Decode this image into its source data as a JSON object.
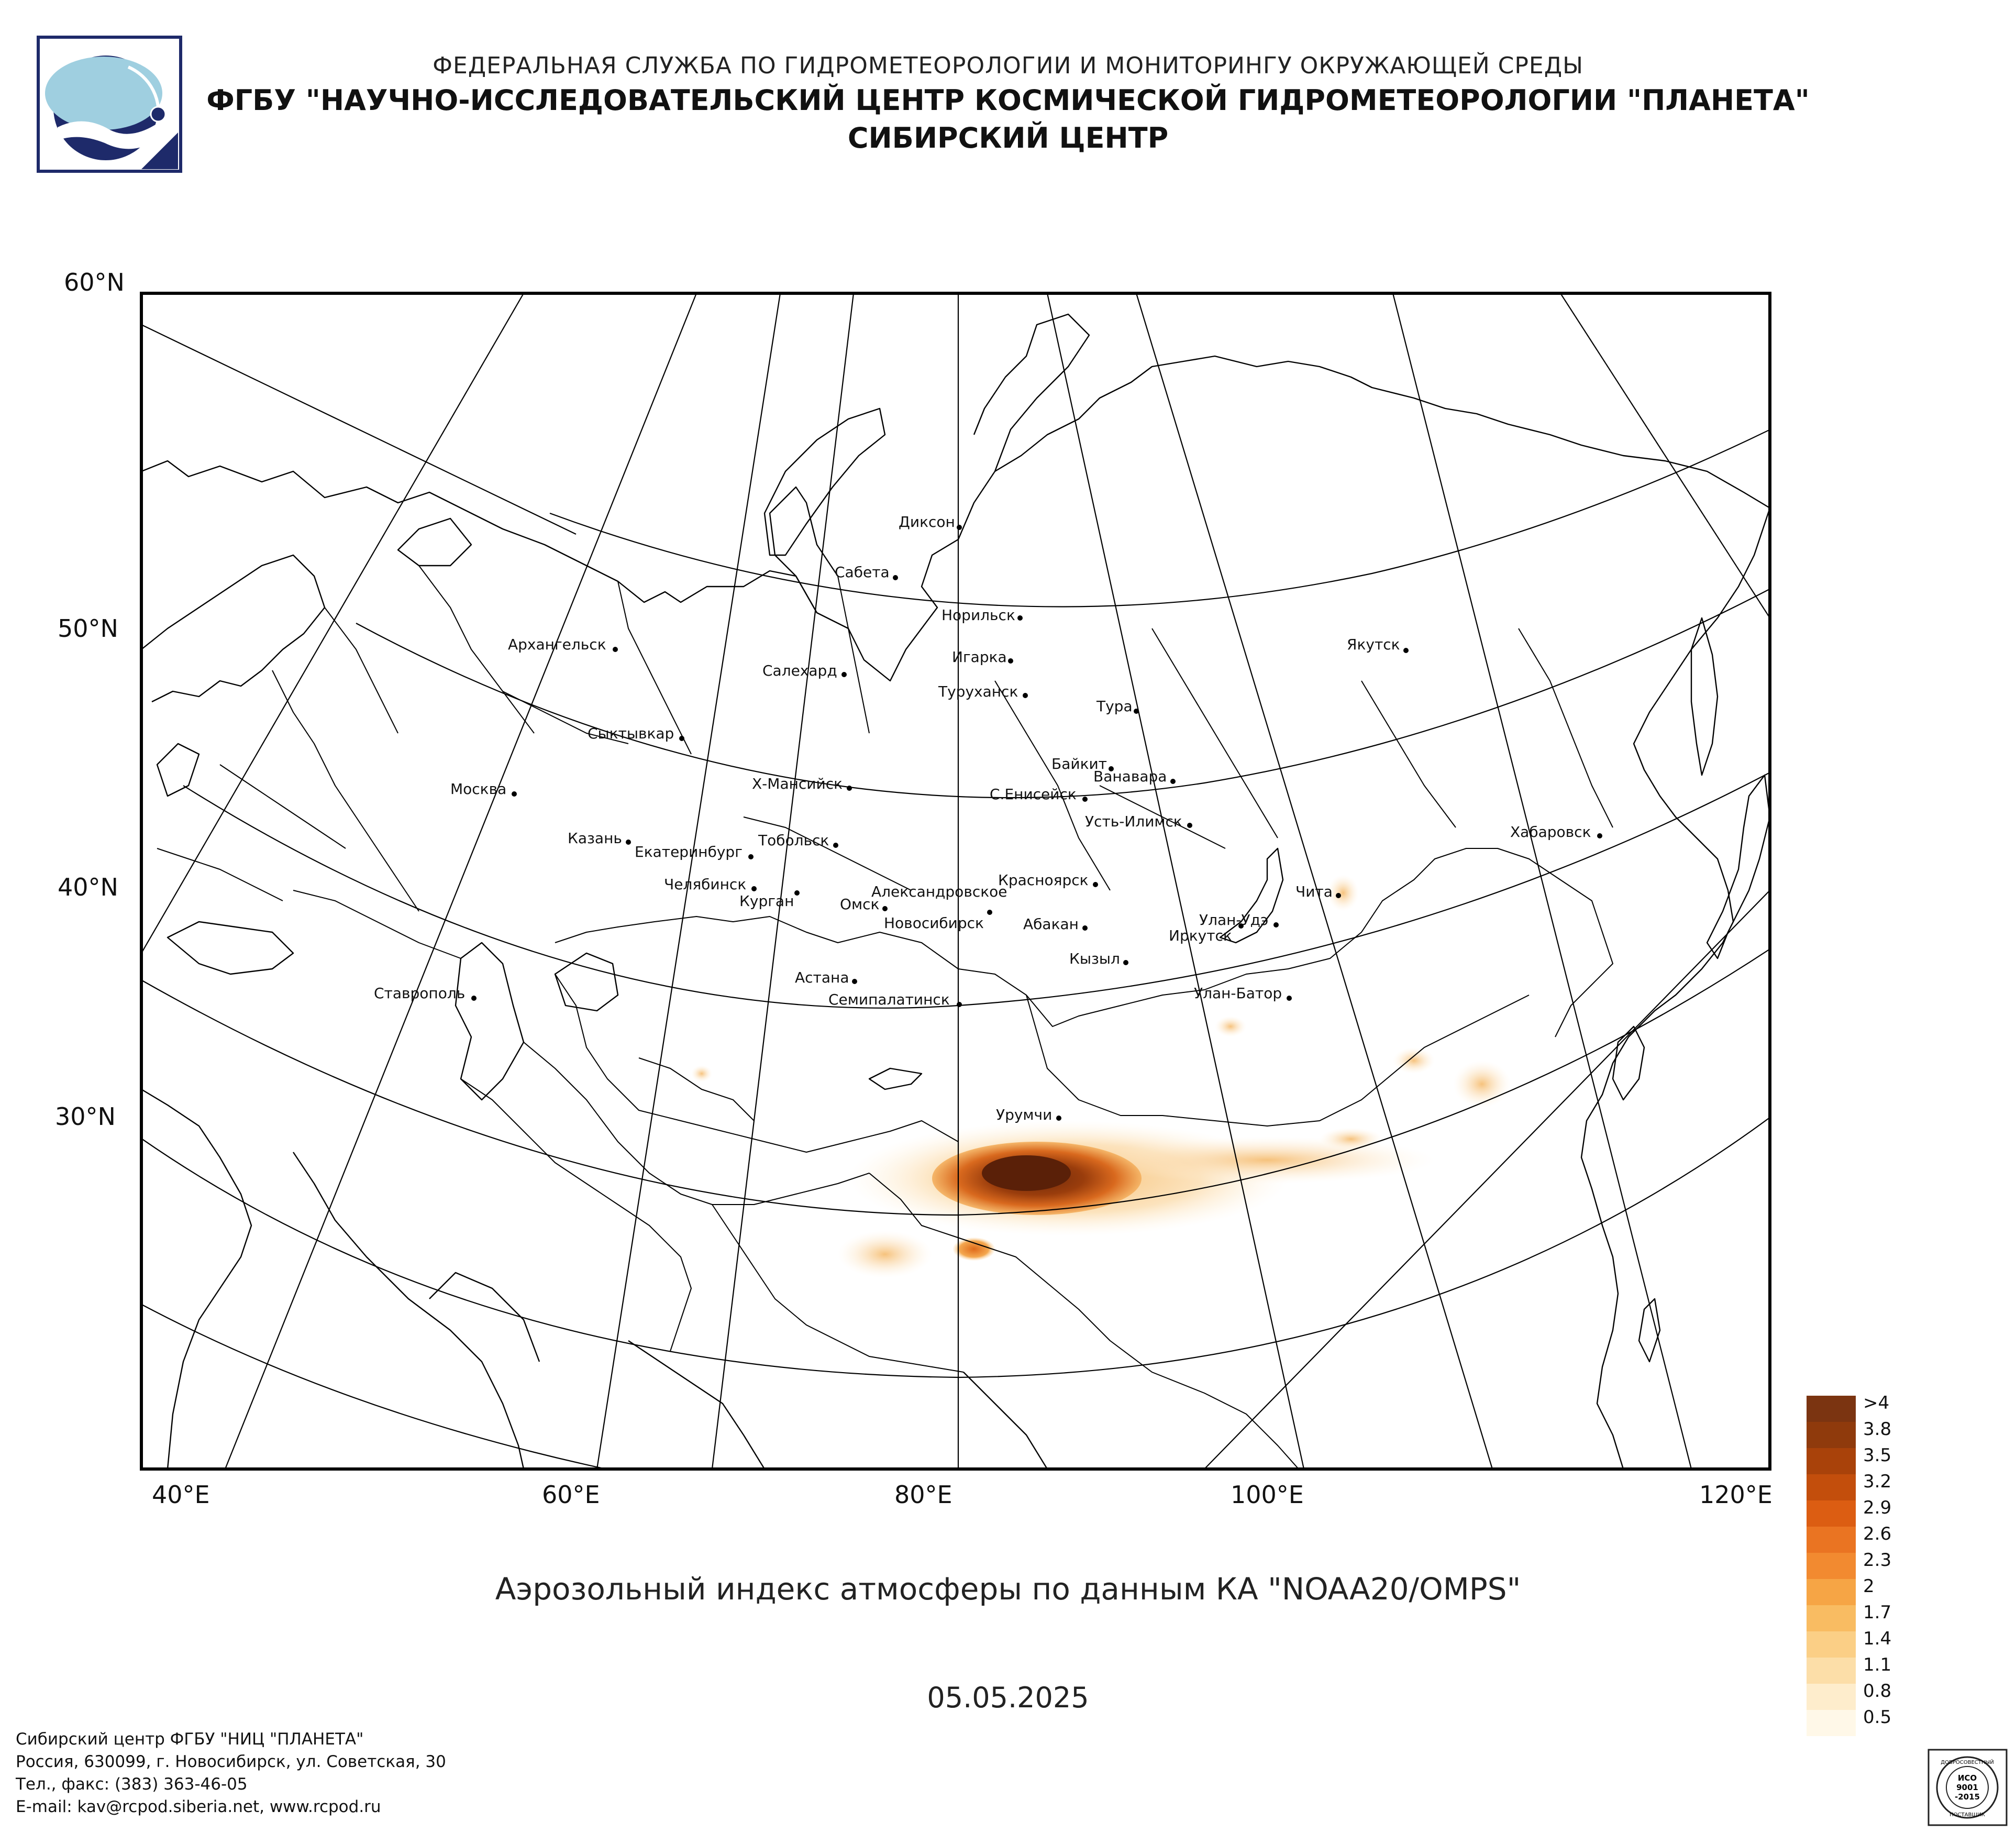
{
  "header": {
    "agency": "ФЕДЕРАЛЬНАЯ СЛУЖБА ПО ГИДРОМЕТЕОРОЛОГИИ И МОНИТОРИНГУ ОКРУЖАЮЩЕЙ СРЕДЫ",
    "institute": "ФГБУ \"НАУЧНО-ИССЛЕДОВАТЕЛЬСКИЙ ЦЕНТР КОСМИЧЕСКОЙ ГИДРОМЕТЕОРОЛОГИИ \"ПЛАНЕТА\"",
    "center": "СИБИРСКИЙ ЦЕНТР"
  },
  "map": {
    "lat_labels": [
      "60°N",
      "50°N",
      "40°N",
      "30°N"
    ],
    "lon_labels": [
      "40°E",
      "60°E",
      "80°E",
      "100°E",
      "120°E"
    ],
    "cities": [
      "Диксон",
      "Сабета",
      "Норильск",
      "Игарка",
      "Салехард",
      "Туруханск",
      "Тура",
      "Архангельск",
      "Якутск",
      "Сыктывкар",
      "Байкит",
      "Ванавара",
      "Х-Мансийск",
      "С.Енисейск",
      "Москва",
      "Усть-Илимск",
      "Хабаровск",
      "Казань",
      "Тобольск",
      "Екатеринбург",
      "Челябинск",
      "Курган",
      "Красноярск",
      "Чита",
      "Александровское",
      "Омск",
      "Новосибирск",
      "Абакан",
      "Улан-Удэ",
      "Иркутск",
      "Кызыл",
      "Астана",
      "Ставрополь",
      "Улан-Батор",
      "Семипалатинск",
      "Урумчи"
    ],
    "colors": {
      "land_outline": "#000000",
      "frame": "#000000",
      "plume_max": "#7a2e0a"
    }
  },
  "title": "Аэрозольный индекс атмосферы по данным КА \"NOAA20/OMPS\"",
  "date": "05.05.2025",
  "legend": {
    "items": [
      {
        "label": ">4",
        "color": "#7b3411"
      },
      {
        "label": "3.8",
        "color": "#8f3a0c"
      },
      {
        "label": "3.5",
        "color": "#a9420a"
      },
      {
        "label": "3.2",
        "color": "#c34e0c"
      },
      {
        "label": "2.9",
        "color": "#dc5d12"
      },
      {
        "label": "2.6",
        "color": "#ea7422"
      },
      {
        "label": "2.3",
        "color": "#f28a30"
      },
      {
        "label": "2",
        "color": "#f6a545"
      },
      {
        "label": "1.7",
        "color": "#f9bc62"
      },
      {
        "label": "1.4",
        "color": "#fbcf86"
      },
      {
        "label": "1.1",
        "color": "#fcdea8"
      },
      {
        "label": "0.8",
        "color": "#feedcc"
      },
      {
        "label": "0.5",
        "color": "#fff8e8"
      }
    ]
  },
  "footer": {
    "line1": "Сибирский центр ФГБУ \"НИЦ \"ПЛАНЕТА\"",
    "line2": "Россия, 630099, г. Новосибирск, ул. Советская, 30",
    "line3": "Тел., факс: (383) 363-46-05",
    "line4": "E-mail: kav@rcpod.siberia.net, www.rcpod.ru"
  },
  "badge": {
    "top_text": "ДОБРОСОВЕСТНЫЙ",
    "line1": "ИСО",
    "line2": "9001",
    "line3": "-2015",
    "bottom_text": "ПОСТАВЩИК"
  }
}
